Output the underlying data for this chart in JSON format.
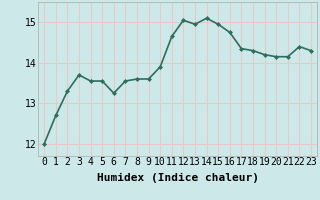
{
  "x": [
    0,
    1,
    2,
    3,
    4,
    5,
    6,
    7,
    8,
    9,
    10,
    11,
    12,
    13,
    14,
    15,
    16,
    17,
    18,
    19,
    20,
    21,
    22,
    23
  ],
  "y": [
    12.0,
    12.7,
    13.3,
    13.7,
    13.55,
    13.55,
    13.25,
    13.55,
    13.6,
    13.6,
    13.9,
    14.65,
    15.05,
    14.95,
    15.1,
    14.95,
    14.75,
    14.35,
    14.3,
    14.2,
    14.15,
    14.15,
    14.4,
    14.3
  ],
  "line_color": "#2d6e5e",
  "marker": "D",
  "marker_size": 2,
  "bg_color": "#cce8e8",
  "grid_color": "#e8c8c8",
  "xlabel": "Humidex (Indice chaleur)",
  "ylim": [
    11.7,
    15.5
  ],
  "xlim": [
    -0.5,
    23.5
  ],
  "yticks": [
    12,
    13,
    14,
    15
  ],
  "xticks": [
    0,
    1,
    2,
    3,
    4,
    5,
    6,
    7,
    8,
    9,
    10,
    11,
    12,
    13,
    14,
    15,
    16,
    17,
    18,
    19,
    20,
    21,
    22,
    23
  ],
  "xlabel_fontsize": 8,
  "tick_fontsize": 7,
  "line_width": 1.2
}
